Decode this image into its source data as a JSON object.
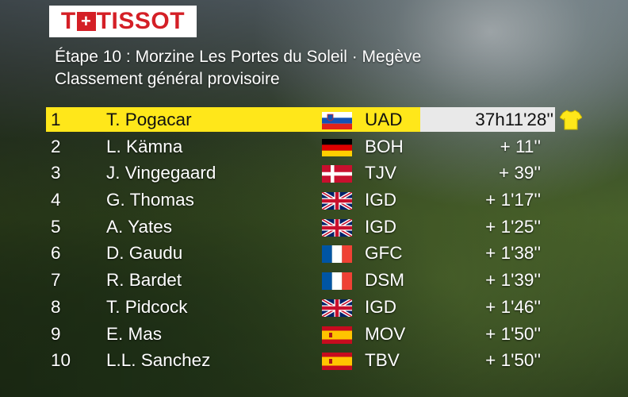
{
  "brand": {
    "logo_left": "T",
    "logo_right": "TISSOT"
  },
  "header": {
    "stage": "Étape 10 : Morzine Les Portes du Soleil · Megève",
    "classification": "Classement général provisoire"
  },
  "colors": {
    "leader_bar": "#ffe71a",
    "time_box": "#e9e9e9",
    "brand_red": "#d41f26"
  },
  "standings": [
    {
      "rank": "1",
      "rider": "T. Pogacar",
      "flag": "slovenia-flag",
      "team": "UAD",
      "time": "37h11'28''",
      "leader": true
    },
    {
      "rank": "2",
      "rider": "L. Kämna",
      "flag": "germany-flag",
      "team": "BOH",
      "time": "+ 11''"
    },
    {
      "rank": "3",
      "rider": "J. Vingegaard",
      "flag": "denmark-flag",
      "team": "TJV",
      "time": "+ 39''"
    },
    {
      "rank": "4",
      "rider": "G. Thomas",
      "flag": "uk-flag",
      "team": "IGD",
      "time": "+ 1'17''"
    },
    {
      "rank": "5",
      "rider": "A. Yates",
      "flag": "uk-flag",
      "team": "IGD",
      "time": "+ 1'25''"
    },
    {
      "rank": "6",
      "rider": "D. Gaudu",
      "flag": "france-flag",
      "team": "GFC",
      "time": "+ 1'38''"
    },
    {
      "rank": "7",
      "rider": "R. Bardet",
      "flag": "france-flag",
      "team": "DSM",
      "time": "+ 1'39''"
    },
    {
      "rank": "8",
      "rider": "T. Pidcock",
      "flag": "uk-flag",
      "team": "IGD",
      "time": "+ 1'46''"
    },
    {
      "rank": "9",
      "rider": "E. Mas",
      "flag": "spain-flag",
      "team": "MOV",
      "time": "+ 1'50''"
    },
    {
      "rank": "10",
      "rider": "L.L. Sanchez",
      "flag": "spain-flag",
      "team": "TBV",
      "time": "+ 1'50''"
    }
  ]
}
